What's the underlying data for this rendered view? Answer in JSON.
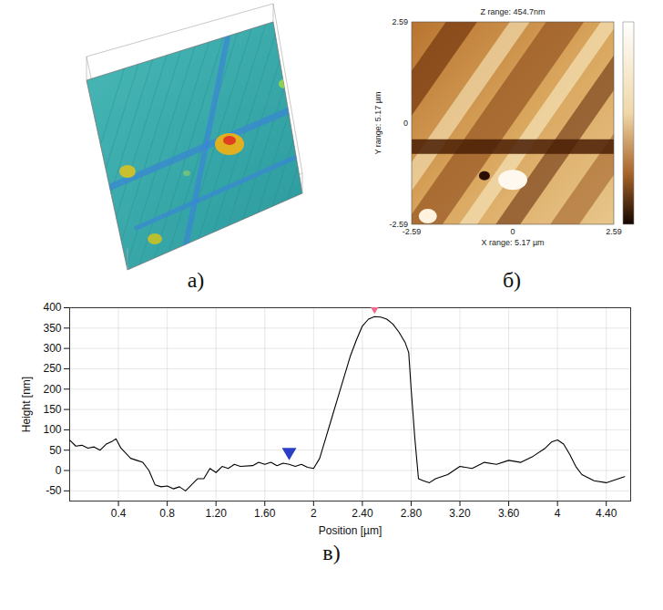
{
  "panels": [
    {
      "label": "а)"
    },
    {
      "label": "б)",
      "title": "Z range: 454.7nm",
      "xticks": [
        -2.59,
        0,
        2.59
      ],
      "yticks": [
        -2.59,
        0,
        2.59
      ],
      "x_label": "X range: 5.17 µm",
      "y_label": "Y range: 5.17 µm"
    },
    {
      "label": "в)"
    }
  ],
  "chart_data": {
    "type": "line",
    "x_label": "Position [µm]",
    "y_label": "Height [nm]",
    "color": "#000000",
    "grid": true,
    "xlim": [
      0,
      4.6
    ],
    "ylim": [
      -75,
      400
    ],
    "xticks": [
      0.4,
      0.8,
      {
        "value": 1.2,
        "label": "1.20"
      },
      {
        "value": 1.6,
        "label": "1.60"
      },
      2,
      {
        "value": 2.4,
        "label": "2.40"
      },
      {
        "value": 2.8,
        "label": "2.80"
      },
      {
        "value": 3.2,
        "label": "3.20"
      },
      {
        "value": 3.6,
        "label": "3.60"
      },
      4,
      {
        "value": 4.4,
        "label": "4.40"
      }
    ],
    "yticks": [
      -50,
      0,
      50,
      100,
      150,
      200,
      250,
      300,
      350,
      400
    ],
    "x": [
      0,
      0.05,
      0.1,
      0.15,
      0.2,
      0.25,
      0.3,
      0.35,
      0.38,
      0.42,
      0.5,
      0.55,
      0.6,
      0.65,
      0.7,
      0.75,
      0.8,
      0.85,
      0.9,
      0.95,
      1.0,
      1.05,
      1.1,
      1.15,
      1.2,
      1.25,
      1.3,
      1.35,
      1.4,
      1.5,
      1.55,
      1.6,
      1.65,
      1.7,
      1.75,
      1.8,
      1.85,
      1.9,
      1.95,
      2.0,
      2.05,
      2.1,
      2.15,
      2.2,
      2.25,
      2.3,
      2.35,
      2.4,
      2.45,
      2.5,
      2.55,
      2.6,
      2.65,
      2.7,
      2.75,
      2.78,
      2.8,
      2.83,
      2.86,
      2.9,
      2.95,
      3.0,
      3.05,
      3.1,
      3.2,
      3.3,
      3.4,
      3.5,
      3.6,
      3.7,
      3.8,
      3.9,
      3.95,
      4.0,
      4.05,
      4.1,
      4.15,
      4.2,
      4.3,
      4.4,
      4.5,
      4.55
    ],
    "values": [
      75,
      60,
      62,
      55,
      58,
      50,
      65,
      72,
      78,
      55,
      30,
      25,
      20,
      0,
      -35,
      -40,
      -38,
      -45,
      -40,
      -50,
      -35,
      -20,
      -20,
      5,
      -5,
      10,
      5,
      15,
      10,
      12,
      20,
      15,
      20,
      12,
      18,
      15,
      10,
      15,
      8,
      5,
      30,
      80,
      130,
      180,
      230,
      280,
      320,
      355,
      372,
      378,
      377,
      372,
      360,
      340,
      315,
      290,
      200,
      80,
      -20,
      -25,
      -30,
      -20,
      -15,
      -10,
      10,
      5,
      20,
      15,
      25,
      20,
      35,
      55,
      70,
      75,
      65,
      40,
      10,
      -10,
      -25,
      -30,
      -20,
      -15
    ],
    "annotations": [
      {
        "x": 1.8,
        "y": 25,
        "color": "#2a3fc8",
        "marker": "triangle_down"
      },
      {
        "x": 2.5,
        "y": 385,
        "color": "#f06a8a",
        "marker": "triangle_down"
      }
    ]
  }
}
